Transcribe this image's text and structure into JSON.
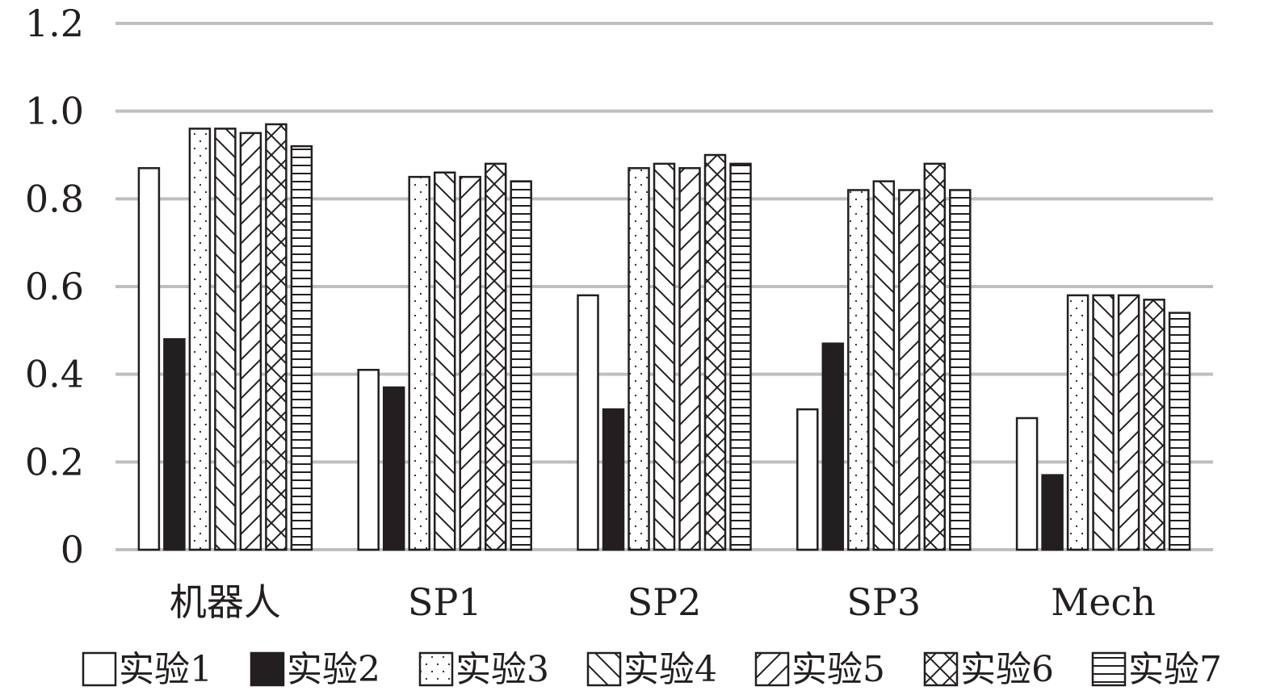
{
  "chart_data": {
    "type": "bar",
    "title": "",
    "xlabel": "",
    "ylabel": "",
    "ylim": [
      0,
      1.2
    ],
    "y_ticks": [
      "0",
      "0.2",
      "0.4",
      "0.6",
      "0.8",
      "1.0",
      "1.2"
    ],
    "y_tick_values": [
      0,
      0.2,
      0.4,
      0.6,
      0.8,
      1.0,
      1.2
    ],
    "grid": "horizontal",
    "legend_position": "bottom",
    "categories": [
      "机器人",
      "SP1",
      "SP2",
      "SP3",
      "Mech"
    ],
    "series": [
      {
        "name": "实验1",
        "pattern": "none",
        "values": [
          0.87,
          0.41,
          0.58,
          0.32,
          0.3
        ]
      },
      {
        "name": "实验2",
        "pattern": "solid",
        "values": [
          0.48,
          0.37,
          0.32,
          0.47,
          0.17
        ]
      },
      {
        "name": "实验3",
        "pattern": "dots",
        "values": [
          0.96,
          0.85,
          0.87,
          0.82,
          0.58
        ]
      },
      {
        "name": "实验4",
        "pattern": "diag-down",
        "values": [
          0.96,
          0.86,
          0.88,
          0.84,
          0.58
        ]
      },
      {
        "name": "实验5",
        "pattern": "diag-up",
        "values": [
          0.95,
          0.85,
          0.87,
          0.82,
          0.58
        ]
      },
      {
        "name": "实验6",
        "pattern": "cross",
        "values": [
          0.97,
          0.88,
          0.9,
          0.88,
          0.57
        ]
      },
      {
        "name": "实验7",
        "pattern": "horizontal",
        "values": [
          0.92,
          0.84,
          0.88,
          0.82,
          0.54
        ]
      }
    ],
    "colors": {
      "grid": "#bfbfbf",
      "stroke": "#231f20",
      "fill": "#ffffff",
      "text": "#231f20"
    }
  }
}
